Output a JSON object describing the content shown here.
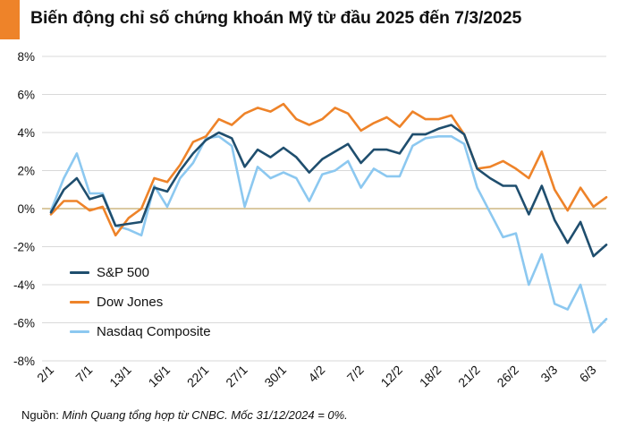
{
  "title": "Biến động chỉ số chứng khoán Mỹ từ đầu 2025 đến 7/3/2025",
  "source": {
    "prefix": "Nguồn: ",
    "text": "Minh Quang tổng hợp từ CNBC. Mốc 31/12/2024 = 0%."
  },
  "colors": {
    "accent": "#ee8329",
    "sp500": "#1f4e6e",
    "dowjones": "#ee8329",
    "nasdaq": "#8cc8f0",
    "grid": "#d9d9d9",
    "zero_line": "#c4a96a"
  },
  "chart_data": {
    "type": "line",
    "ylim": [
      -8,
      8
    ],
    "yticks": [
      -8,
      -6,
      -4,
      -2,
      0,
      2,
      4,
      6,
      8
    ],
    "ytick_labels": [
      "-8%",
      "-6%",
      "-4%",
      "-2%",
      "0%",
      "2%",
      "4%",
      "6%",
      "8%"
    ],
    "x_tick_labels": [
      "2/1",
      "7/1",
      "13/1",
      "16/1",
      "22/1",
      "27/1",
      "30/1",
      "4/2",
      "7/2",
      "12/2",
      "18/2",
      "21/2",
      "26/2",
      "3/3",
      "6/3"
    ],
    "x_tick_every": 3,
    "grid": "horizontal",
    "legend_position": "lower-left",
    "series": [
      {
        "name": "S&P 500",
        "color_key": "sp500",
        "values": [
          -0.2,
          1.0,
          1.6,
          0.5,
          0.7,
          -0.9,
          -0.8,
          -0.7,
          1.1,
          0.9,
          2.0,
          2.9,
          3.6,
          4.0,
          3.7,
          2.2,
          3.1,
          2.7,
          3.2,
          2.7,
          1.9,
          2.6,
          3.0,
          3.4,
          2.4,
          3.1,
          3.1,
          2.9,
          3.9,
          3.9,
          4.2,
          4.4,
          3.9,
          2.1,
          1.6,
          1.2,
          1.2,
          -0.3,
          1.2,
          -0.6,
          -1.8,
          -0.7,
          -2.5,
          -1.9
        ]
      },
      {
        "name": "Dow Jones",
        "color_key": "dowjones",
        "values": [
          -0.3,
          0.4,
          0.4,
          -0.1,
          0.1,
          -1.4,
          -0.5,
          0.0,
          1.6,
          1.4,
          2.3,
          3.5,
          3.8,
          4.7,
          4.4,
          5.0,
          5.3,
          5.1,
          5.5,
          4.7,
          4.4,
          4.7,
          5.3,
          5.0,
          4.1,
          4.5,
          4.8,
          4.3,
          5.1,
          4.7,
          4.7,
          4.9,
          3.9,
          2.1,
          2.2,
          2.5,
          2.1,
          1.6,
          3.0,
          1.0,
          -0.1,
          1.1,
          0.1,
          0.6
        ]
      },
      {
        "name": "Nasdaq Composite",
        "color_key": "nasdaq",
        "values": [
          -0.1,
          1.6,
          2.9,
          0.8,
          0.8,
          -0.9,
          -1.1,
          -1.4,
          1.2,
          0.1,
          1.6,
          2.4,
          3.7,
          3.8,
          3.3,
          0.1,
          2.2,
          1.6,
          1.9,
          1.6,
          0.4,
          1.8,
          2.0,
          2.5,
          1.1,
          2.1,
          1.7,
          1.7,
          3.3,
          3.7,
          3.8,
          3.8,
          3.4,
          1.1,
          -0.2,
          -1.5,
          -1.3,
          -4.0,
          -2.4,
          -5.0,
          -5.3,
          -4.0,
          -6.5,
          -5.8
        ]
      }
    ]
  }
}
